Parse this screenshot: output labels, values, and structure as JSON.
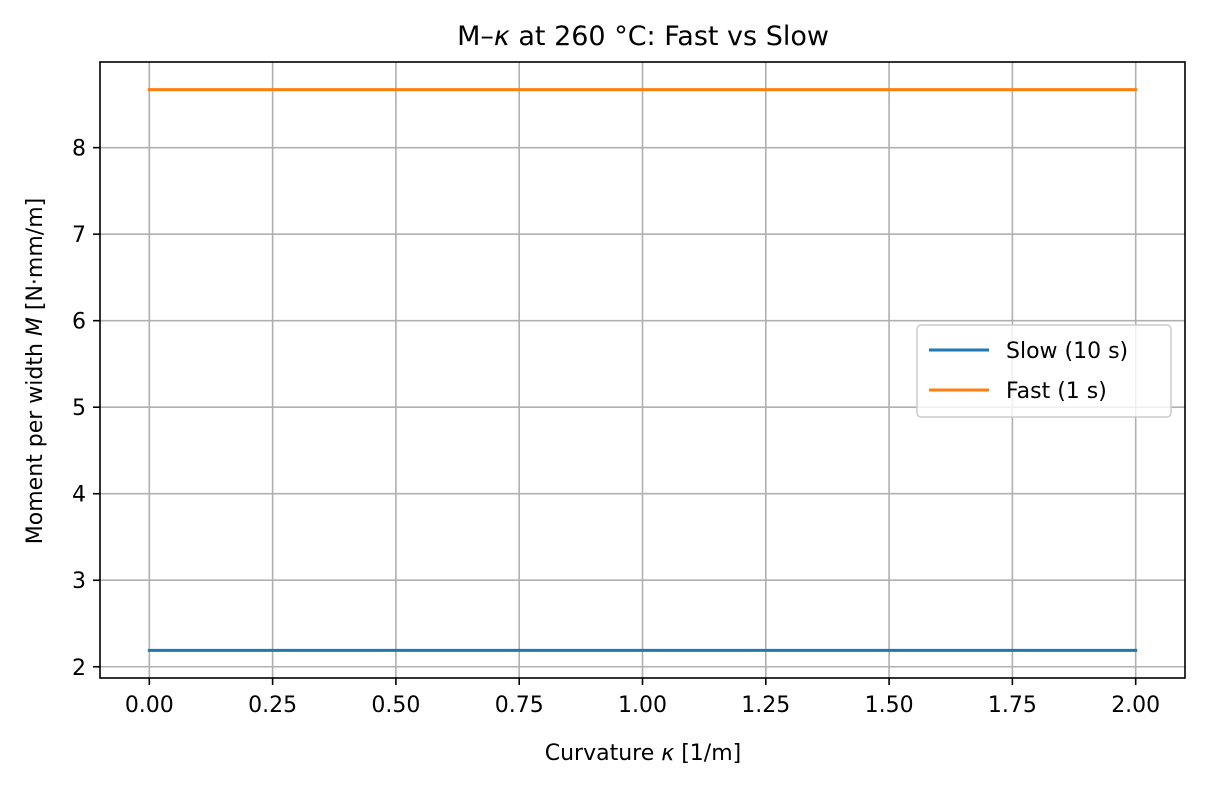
{
  "chart_data": {
    "type": "line",
    "title_parts": [
      "M–",
      "κ",
      " at 260 °C: Fast vs Slow"
    ],
    "xlabel_parts": [
      "Curvature ",
      "κ",
      " [1/m]"
    ],
    "ylabel_parts": [
      "Moment per width ",
      "M",
      " [N·mm/m]"
    ],
    "xlim": [
      -0.1,
      2.1
    ],
    "ylim": [
      1.87,
      8.99
    ],
    "xticks": [
      0.0,
      0.25,
      0.5,
      0.75,
      1.0,
      1.25,
      1.5,
      1.75,
      2.0
    ],
    "xtick_labels": [
      "0.00",
      "0.25",
      "0.50",
      "0.75",
      "1.00",
      "1.25",
      "1.50",
      "1.75",
      "2.00"
    ],
    "yticks": [
      2,
      3,
      4,
      5,
      6,
      7,
      8
    ],
    "ytick_labels": [
      "2",
      "3",
      "4",
      "5",
      "6",
      "7",
      "8"
    ],
    "grid": true,
    "legend_position": "center-right",
    "series": [
      {
        "name": "Slow (10 s)",
        "color": "#1f77b4",
        "x": [
          0.0,
          2.0
        ],
        "y": [
          2.19,
          2.19
        ]
      },
      {
        "name": "Fast (1 s)",
        "color": "#ff7f0e",
        "x": [
          0.0,
          2.0
        ],
        "y": [
          8.67,
          8.67
        ]
      }
    ]
  }
}
